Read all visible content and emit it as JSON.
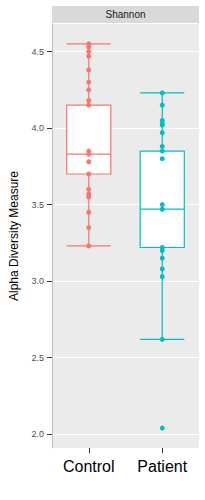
{
  "chart_data": {
    "type": "box",
    "title": "Shannon",
    "y_label": "Alpha Diversity Measure",
    "categories": [
      "Control",
      "Patient"
    ],
    "colors": [
      "#F8766D",
      "#00BFC4"
    ],
    "box_stats": [
      [
        3.23,
        3.7,
        3.83,
        4.15,
        4.55
      ],
      [
        2.62,
        3.22,
        3.47,
        3.85,
        4.23
      ]
    ],
    "points": [
      [
        4.55,
        4.53,
        4.5,
        4.47,
        4.38,
        4.3,
        4.25,
        4.18,
        4.15,
        3.85,
        3.83,
        3.78,
        3.7,
        3.6,
        3.57,
        3.55,
        3.45,
        3.35,
        3.23
      ],
      [
        4.23,
        4.15,
        4.05,
        4.03,
        4.02,
        3.97,
        3.88,
        3.85,
        3.8,
        3.5,
        3.47,
        3.22,
        3.2,
        3.15,
        3.08,
        3.03,
        2.62,
        2.04
      ]
    ],
    "ylim": [
      1.91,
      4.68
    ],
    "yticks": [
      {
        "value": 2,
        "label": "2.0"
      },
      {
        "value": 2.5,
        "label": "2.5"
      },
      {
        "value": 3,
        "label": "3.0"
      },
      {
        "value": 3.5,
        "label": "3.5"
      },
      {
        "value": 4,
        "label": "4.0"
      },
      {
        "value": 4.5,
        "label": "4.5"
      }
    ],
    "grid": true
  }
}
